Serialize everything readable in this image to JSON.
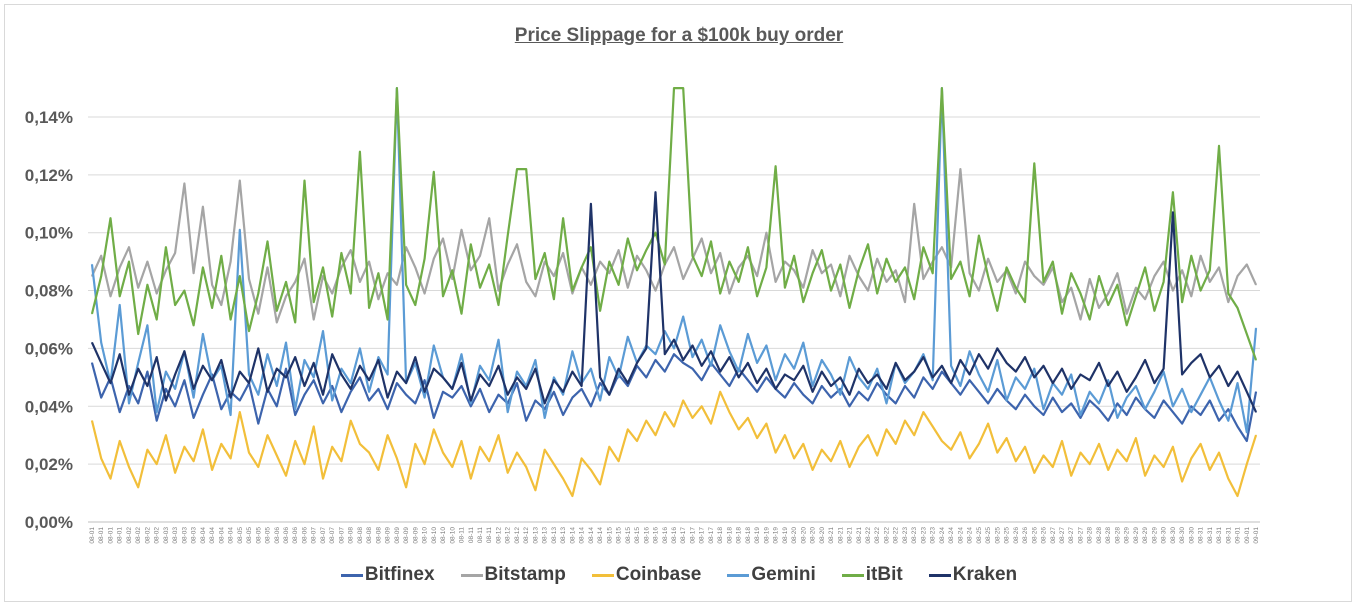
{
  "chart_data": {
    "type": "line",
    "title": "Price Slippage for a $100k buy order",
    "xlabel": "",
    "ylabel": "",
    "ylim": [
      0,
      0.15
    ],
    "y_unit": "%",
    "yticks": [
      "0,00%",
      "0,02%",
      "0,04%",
      "0,06%",
      "0,08%",
      "0,10%",
      "0,12%",
      "0,14%"
    ],
    "ytick_values": [
      0,
      0.02,
      0.04,
      0.06,
      0.08,
      0.1,
      0.12,
      0.14
    ],
    "grid": true,
    "legend_position": "bottom",
    "categories": [
      "08-01",
      "08-01",
      "08-01",
      "08-01",
      "08-02",
      "08-02",
      "08-02",
      "08-02",
      "08-03",
      "08-03",
      "08-03",
      "08-03",
      "08-04",
      "08-04",
      "08-04",
      "08-04",
      "08-05",
      "08-05",
      "08-05",
      "08-05",
      "08-06",
      "08-06",
      "08-06",
      "08-06",
      "08-07",
      "08-07",
      "08-07",
      "08-07",
      "08-08",
      "08-08",
      "08-08",
      "08-08",
      "08-09",
      "08-09",
      "08-09",
      "08-09",
      "08-10",
      "08-10",
      "08-10",
      "08-10",
      "08-11",
      "08-11",
      "08-11",
      "08-11",
      "08-12",
      "08-12",
      "08-12",
      "08-12",
      "08-13",
      "08-13",
      "08-13",
      "08-13",
      "08-14",
      "08-14",
      "08-14",
      "08-14",
      "08-15",
      "08-15",
      "08-15",
      "08-15",
      "08-16",
      "08-16",
      "08-16",
      "08-16",
      "08-17",
      "08-17",
      "08-17",
      "08-17",
      "08-18",
      "08-18",
      "08-18",
      "08-18",
      "08-19",
      "08-19",
      "08-19",
      "08-19",
      "08-20",
      "08-20",
      "08-20",
      "08-20",
      "08-21",
      "08-21",
      "08-21",
      "08-21",
      "08-22",
      "08-22",
      "08-22",
      "08-22",
      "08-23",
      "08-23",
      "08-23",
      "08-23",
      "08-24",
      "08-24",
      "08-24",
      "08-24",
      "08-25",
      "08-25",
      "08-25",
      "08-25",
      "08-26",
      "08-26",
      "08-26",
      "08-26",
      "08-27",
      "08-27",
      "08-27",
      "08-27",
      "08-28",
      "08-28",
      "08-28",
      "08-28",
      "08-29",
      "08-29",
      "08-29",
      "08-29",
      "08-30",
      "08-30",
      "08-30",
      "08-30",
      "08-31",
      "08-31",
      "08-31",
      "08-31",
      "09-01",
      "09-01",
      "09-01"
    ],
    "series": [
      {
        "name": "Bitfinex",
        "color": "#3d64ad",
        "values": [
          0.055,
          0.043,
          0.05,
          0.038,
          0.047,
          0.041,
          0.052,
          0.035,
          0.046,
          0.04,
          0.049,
          0.036,
          0.044,
          0.051,
          0.039,
          0.045,
          0.042,
          0.048,
          0.034,
          0.046,
          0.04,
          0.053,
          0.037,
          0.044,
          0.049,
          0.041,
          0.047,
          0.038,
          0.045,
          0.05,
          0.042,
          0.046,
          0.039,
          0.048,
          0.044,
          0.041,
          0.049,
          0.036,
          0.045,
          0.043,
          0.047,
          0.04,
          0.046,
          0.038,
          0.044,
          0.041,
          0.048,
          0.035,
          0.042,
          0.039,
          0.045,
          0.037,
          0.043,
          0.046,
          0.04,
          0.048,
          0.044,
          0.051,
          0.047,
          0.054,
          0.05,
          0.056,
          0.052,
          0.058,
          0.055,
          0.053,
          0.049,
          0.055,
          0.051,
          0.047,
          0.053,
          0.049,
          0.045,
          0.05,
          0.046,
          0.043,
          0.048,
          0.044,
          0.041,
          0.047,
          0.043,
          0.046,
          0.04,
          0.045,
          0.042,
          0.048,
          0.044,
          0.041,
          0.047,
          0.043,
          0.05,
          0.046,
          0.052,
          0.048,
          0.044,
          0.049,
          0.045,
          0.041,
          0.046,
          0.042,
          0.039,
          0.044,
          0.04,
          0.037,
          0.043,
          0.038,
          0.041,
          0.036,
          0.042,
          0.039,
          0.035,
          0.041,
          0.037,
          0.043,
          0.039,
          0.036,
          0.042,
          0.038,
          0.034,
          0.04,
          0.037,
          0.042,
          0.035,
          0.039,
          0.033,
          0.028,
          0.045
        ]
      },
      {
        "name": "Bitstamp",
        "color": "#a5a5a5",
        "values": [
          0.085,
          0.092,
          0.078,
          0.088,
          0.095,
          0.081,
          0.09,
          0.079,
          0.087,
          0.093,
          0.117,
          0.086,
          0.109,
          0.082,
          0.075,
          0.09,
          0.118,
          0.084,
          0.072,
          0.088,
          0.069,
          0.078,
          0.083,
          0.091,
          0.07,
          0.085,
          0.079,
          0.088,
          0.094,
          0.083,
          0.09,
          0.077,
          0.086,
          0.082,
          0.095,
          0.088,
          0.079,
          0.091,
          0.098,
          0.084,
          0.101,
          0.087,
          0.092,
          0.105,
          0.08,
          0.089,
          0.096,
          0.083,
          0.078,
          0.09,
          0.085,
          0.093,
          0.079,
          0.088,
          0.082,
          0.09,
          0.086,
          0.094,
          0.081,
          0.092,
          0.087,
          0.08,
          0.089,
          0.095,
          0.084,
          0.091,
          0.098,
          0.086,
          0.093,
          0.079,
          0.088,
          0.092,
          0.085,
          0.1,
          0.083,
          0.09,
          0.087,
          0.081,
          0.094,
          0.086,
          0.089,
          0.078,
          0.092,
          0.085,
          0.08,
          0.091,
          0.083,
          0.087,
          0.076,
          0.11,
          0.084,
          0.09,
          0.095,
          0.088,
          0.122,
          0.086,
          0.08,
          0.091,
          0.083,
          0.087,
          0.079,
          0.09,
          0.085,
          0.082,
          0.088,
          0.076,
          0.081,
          0.07,
          0.084,
          0.074,
          0.079,
          0.086,
          0.072,
          0.081,
          0.077,
          0.085,
          0.09,
          0.08,
          0.087,
          0.078,
          0.092,
          0.083,
          0.088,
          0.076,
          0.085,
          0.089,
          0.082
        ]
      },
      {
        "name": "Coinbase",
        "color": "#f2bf3a",
        "values": [
          0.035,
          0.022,
          0.015,
          0.028,
          0.019,
          0.012,
          0.025,
          0.02,
          0.03,
          0.017,
          0.026,
          0.021,
          0.032,
          0.018,
          0.027,
          0.022,
          0.038,
          0.024,
          0.019,
          0.03,
          0.023,
          0.016,
          0.028,
          0.02,
          0.033,
          0.015,
          0.026,
          0.021,
          0.035,
          0.027,
          0.024,
          0.018,
          0.03,
          0.022,
          0.012,
          0.027,
          0.02,
          0.032,
          0.024,
          0.019,
          0.028,
          0.015,
          0.026,
          0.021,
          0.03,
          0.017,
          0.024,
          0.019,
          0.011,
          0.025,
          0.02,
          0.015,
          0.009,
          0.022,
          0.018,
          0.013,
          0.026,
          0.021,
          0.032,
          0.028,
          0.035,
          0.03,
          0.038,
          0.033,
          0.042,
          0.036,
          0.04,
          0.034,
          0.045,
          0.038,
          0.032,
          0.036,
          0.029,
          0.034,
          0.024,
          0.03,
          0.022,
          0.027,
          0.018,
          0.025,
          0.021,
          0.028,
          0.019,
          0.026,
          0.03,
          0.023,
          0.032,
          0.027,
          0.035,
          0.03,
          0.038,
          0.033,
          0.028,
          0.025,
          0.031,
          0.022,
          0.027,
          0.034,
          0.024,
          0.029,
          0.021,
          0.026,
          0.017,
          0.023,
          0.019,
          0.028,
          0.016,
          0.024,
          0.02,
          0.027,
          0.018,
          0.025,
          0.021,
          0.029,
          0.016,
          0.023,
          0.019,
          0.026,
          0.014,
          0.022,
          0.027,
          0.018,
          0.024,
          0.015,
          0.009,
          0.02,
          0.03
        ]
      },
      {
        "name": "Gemini",
        "color": "#5b9bd5",
        "values": [
          0.089,
          0.062,
          0.048,
          0.075,
          0.041,
          0.055,
          0.068,
          0.038,
          0.052,
          0.046,
          0.059,
          0.043,
          0.065,
          0.049,
          0.054,
          0.037,
          0.101,
          0.051,
          0.044,
          0.058,
          0.047,
          0.062,
          0.039,
          0.056,
          0.05,
          0.066,
          0.042,
          0.053,
          0.048,
          0.06,
          0.045,
          0.057,
          0.051,
          0.15,
          0.048,
          0.055,
          0.043,
          0.061,
          0.05,
          0.046,
          0.058,
          0.041,
          0.054,
          0.049,
          0.063,
          0.038,
          0.052,
          0.047,
          0.056,
          0.036,
          0.05,
          0.044,
          0.059,
          0.048,
          0.053,
          0.042,
          0.057,
          0.05,
          0.064,
          0.055,
          0.061,
          0.058,
          0.066,
          0.06,
          0.071,
          0.057,
          0.063,
          0.054,
          0.068,
          0.059,
          0.052,
          0.065,
          0.055,
          0.061,
          0.049,
          0.058,
          0.053,
          0.062,
          0.047,
          0.056,
          0.051,
          0.044,
          0.057,
          0.05,
          0.046,
          0.053,
          0.041,
          0.055,
          0.048,
          0.052,
          0.058,
          0.049,
          0.15,
          0.054,
          0.047,
          0.059,
          0.051,
          0.045,
          0.056,
          0.042,
          0.05,
          0.046,
          0.053,
          0.039,
          0.048,
          0.044,
          0.051,
          0.037,
          0.045,
          0.041,
          0.049,
          0.036,
          0.043,
          0.047,
          0.039,
          0.045,
          0.052,
          0.04,
          0.046,
          0.038,
          0.044,
          0.05,
          0.042,
          0.035,
          0.048,
          0.031,
          0.067
        ]
      },
      {
        "name": "itBit",
        "color": "#70ad47",
        "values": [
          0.072,
          0.085,
          0.105,
          0.078,
          0.09,
          0.065,
          0.082,
          0.07,
          0.095,
          0.075,
          0.08,
          0.068,
          0.088,
          0.074,
          0.092,
          0.07,
          0.085,
          0.066,
          0.079,
          0.097,
          0.073,
          0.083,
          0.069,
          0.118,
          0.076,
          0.088,
          0.071,
          0.093,
          0.079,
          0.128,
          0.074,
          0.086,
          0.07,
          0.15,
          0.082,
          0.075,
          0.091,
          0.121,
          0.078,
          0.087,
          0.072,
          0.096,
          0.081,
          0.089,
          0.075,
          0.099,
          0.122,
          0.122,
          0.084,
          0.093,
          0.077,
          0.105,
          0.08,
          0.088,
          0.095,
          0.073,
          0.09,
          0.082,
          0.098,
          0.087,
          0.094,
          0.1,
          0.089,
          0.15,
          0.15,
          0.092,
          0.085,
          0.097,
          0.079,
          0.09,
          0.083,
          0.095,
          0.078,
          0.088,
          0.123,
          0.081,
          0.092,
          0.076,
          0.086,
          0.094,
          0.08,
          0.089,
          0.074,
          0.087,
          0.096,
          0.079,
          0.091,
          0.083,
          0.088,
          0.077,
          0.095,
          0.086,
          0.15,
          0.084,
          0.09,
          0.078,
          0.099,
          0.085,
          0.073,
          0.088,
          0.081,
          0.076,
          0.124,
          0.083,
          0.09,
          0.072,
          0.086,
          0.079,
          0.07,
          0.085,
          0.075,
          0.082,
          0.068,
          0.078,
          0.088,
          0.073,
          0.083,
          0.114,
          0.076,
          0.092,
          0.08,
          0.087,
          0.13,
          0.079,
          0.074,
          0.065,
          0.056
        ]
      },
      {
        "name": "Kraken",
        "color": "#1f3368",
        "values": [
          0.062,
          0.055,
          0.048,
          0.058,
          0.044,
          0.053,
          0.047,
          0.057,
          0.042,
          0.051,
          0.059,
          0.046,
          0.054,
          0.049,
          0.056,
          0.043,
          0.052,
          0.048,
          0.06,
          0.045,
          0.053,
          0.05,
          0.057,
          0.047,
          0.055,
          0.044,
          0.058,
          0.051,
          0.046,
          0.054,
          0.049,
          0.056,
          0.043,
          0.052,
          0.048,
          0.057,
          0.045,
          0.053,
          0.05,
          0.046,
          0.055,
          0.042,
          0.051,
          0.047,
          0.054,
          0.044,
          0.05,
          0.046,
          0.053,
          0.041,
          0.049,
          0.045,
          0.052,
          0.047,
          0.11,
          0.05,
          0.044,
          0.053,
          0.048,
          0.055,
          0.06,
          0.114,
          0.058,
          0.063,
          0.056,
          0.061,
          0.054,
          0.059,
          0.052,
          0.057,
          0.05,
          0.055,
          0.048,
          0.053,
          0.046,
          0.051,
          0.049,
          0.054,
          0.045,
          0.052,
          0.047,
          0.05,
          0.044,
          0.053,
          0.048,
          0.051,
          0.046,
          0.055,
          0.049,
          0.052,
          0.057,
          0.05,
          0.054,
          0.048,
          0.056,
          0.051,
          0.058,
          0.053,
          0.06,
          0.055,
          0.052,
          0.057,
          0.05,
          0.054,
          0.048,
          0.053,
          0.046,
          0.051,
          0.049,
          0.055,
          0.047,
          0.052,
          0.045,
          0.05,
          0.056,
          0.048,
          0.053,
          0.107,
          0.051,
          0.055,
          0.058,
          0.05,
          0.054,
          0.047,
          0.052,
          0.045,
          0.038
        ]
      }
    ]
  }
}
